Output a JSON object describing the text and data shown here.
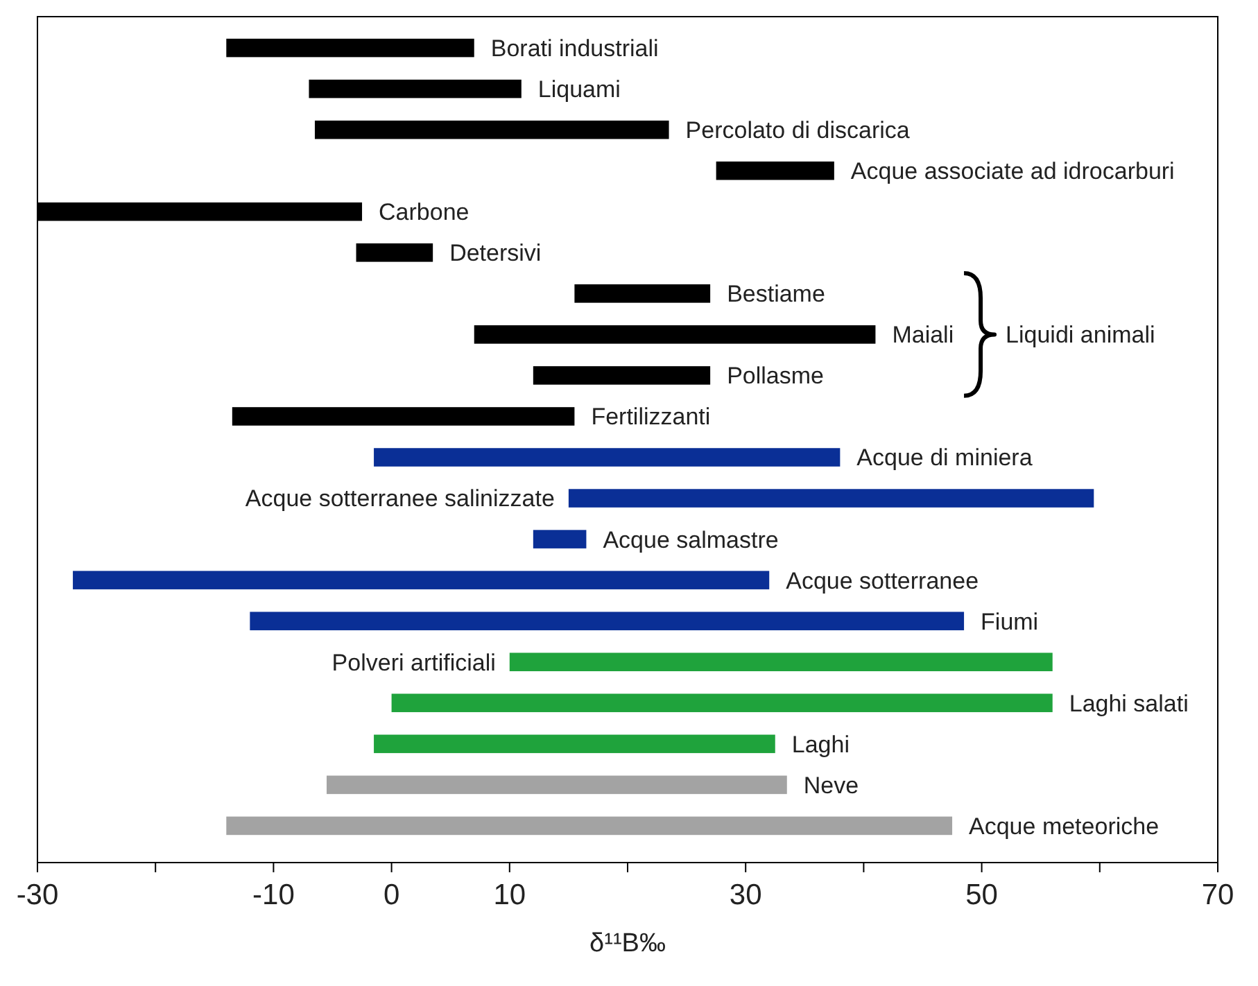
{
  "chart_data": {
    "type": "bar",
    "orientation": "horizontal",
    "xlabel": "δ¹¹B‰",
    "xlim": [
      -30,
      70
    ],
    "xticks": [
      -30,
      {
        "value": -20,
        "label": null
      },
      -10,
      0,
      10,
      {
        "value": 20,
        "label": null
      },
      30,
      {
        "value": 40,
        "label": null
      },
      50,
      {
        "value": 60,
        "label": null
      },
      70
    ],
    "tick_labels": "x",
    "grid": false,
    "categories": [
      "Borati industriali",
      "Liquami",
      "Percolato di discarica",
      "Acque associate ad idrocarburi",
      "Carbone",
      "Detersivi",
      "Bestiame",
      "Maiali",
      "Pollasme",
      "Fertilizzanti",
      "Acque di miniera",
      "Acque sotterranee salinizzate",
      "Acque salmastre",
      "Acque sotterranee",
      "Fiumi",
      "Polveri artificiali",
      "Laghi salati",
      "Laghi",
      "Neve",
      "Acque meteoriche"
    ],
    "base": [
      -14,
      -7,
      -6.5,
      27.5,
      -30,
      -3,
      15.5,
      7,
      12,
      -13.5,
      -1.5,
      15,
      12,
      -27,
      -12,
      10,
      0,
      -1.5,
      -5.5,
      -14
    ],
    "values": [
      21,
      18,
      30,
      10,
      27.5,
      6.5,
      11.5,
      34,
      15,
      29,
      39.5,
      44.5,
      4.5,
      59,
      60.5,
      46,
      56,
      34,
      39,
      61.5
    ],
    "colors": [
      "#000000",
      "#000000",
      "#000000",
      "#000000",
      "#000000",
      "#000000",
      "#000000",
      "#000000",
      "#000000",
      "#000000",
      "#0a2f96",
      "#0a2f96",
      "#0a2f96",
      "#0a2f96",
      "#0a2f96",
      "#1fa33c",
      "#1fa33c",
      "#1fa33c",
      "#a3a3a3",
      "#a3a3a3"
    ],
    "annotations": [
      "Liquidi animali"
    ]
  }
}
